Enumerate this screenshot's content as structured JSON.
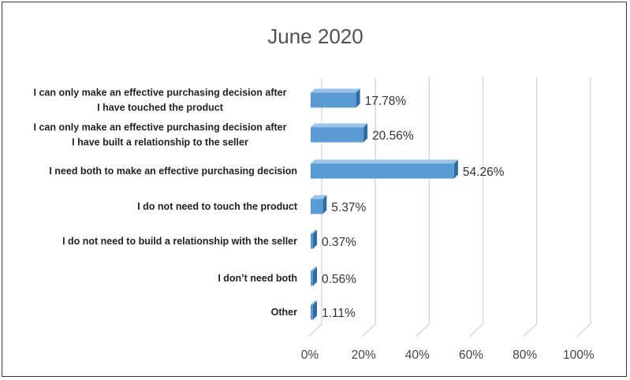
{
  "chart_data": {
    "type": "bar",
    "orientation": "horizontal",
    "style": "3d-clustered",
    "title": "June 2020",
    "categories": [
      [
        "I can only make an effective purchasing decision after",
        "I have touched the product"
      ],
      [
        "I can only make an effective purchasing decision after",
        "I have built a relationship to the seller"
      ],
      [
        "I need both to make an effective purchasing decision"
      ],
      [
        "I do not need to touch the product"
      ],
      [
        "I do not need to build a relationship with the seller"
      ],
      [
        "I don’t need both"
      ],
      [
        "Other"
      ]
    ],
    "values": [
      17.78,
      20.56,
      54.26,
      5.37,
      0.37,
      0.56,
      1.11
    ],
    "value_labels": [
      "17.78%",
      "20.56%",
      "54.26%",
      "5.37%",
      "0.37%",
      "0.56%",
      "1.11%"
    ],
    "xlim": [
      0,
      100
    ],
    "x_ticks": [
      "0%",
      "20%",
      "40%",
      "60%",
      "80%",
      "100%"
    ],
    "grid": true,
    "legend": false,
    "colors": {
      "bar_front": "#5b9bd5",
      "bar_side": "#2e6da4",
      "bar_top": "#9dc3e6",
      "gridline": "#d4d4d4"
    }
  }
}
